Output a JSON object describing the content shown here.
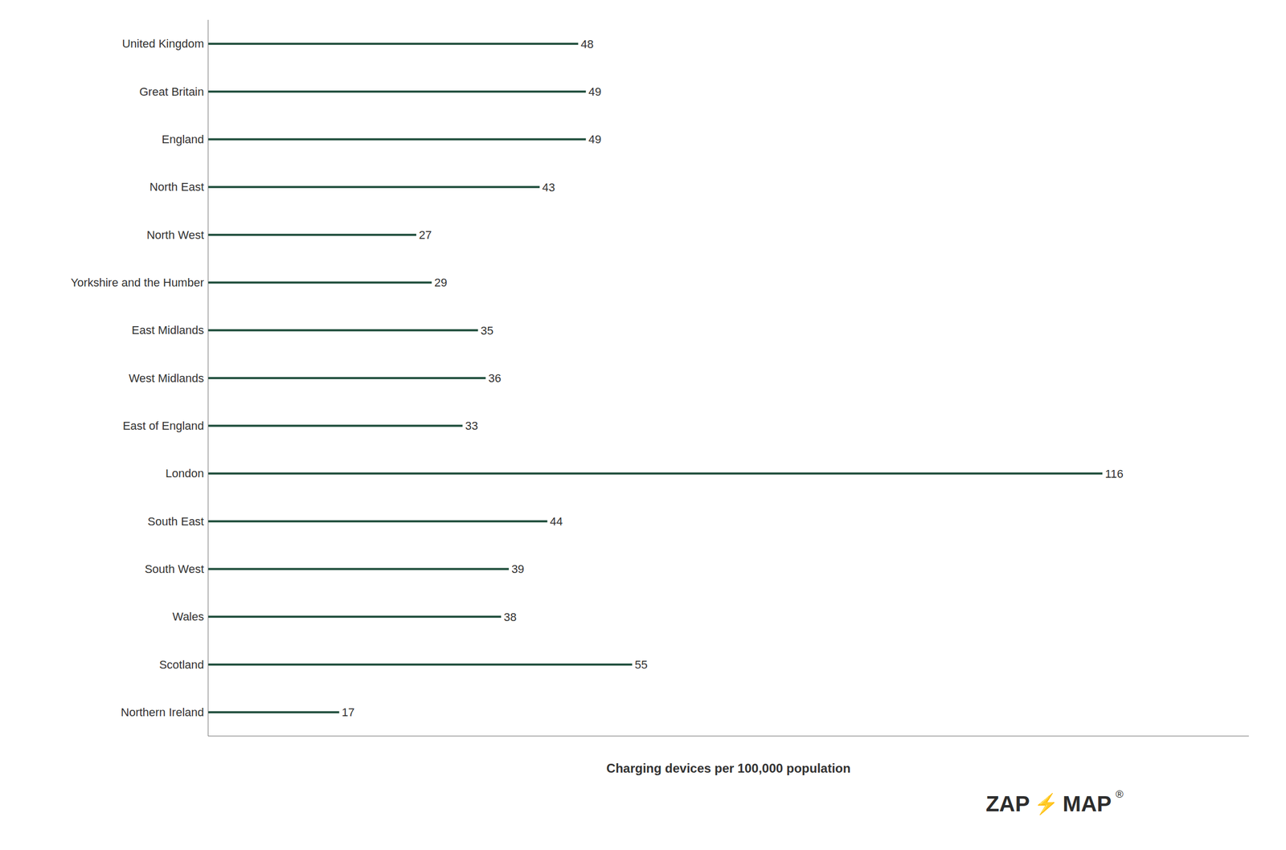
{
  "chart_data": {
    "type": "bar",
    "orientation": "horizontal",
    "categories": [
      "United Kingdom",
      "Great Britain",
      "England",
      "North East",
      "North West",
      "Yorkshire and the Humber",
      "East Midlands",
      "West Midlands",
      "East of England",
      "London",
      "South East",
      "South West",
      "Wales",
      "Scotland",
      "Northern Ireland"
    ],
    "values": [
      48,
      49,
      49,
      43,
      27,
      29,
      35,
      36,
      33,
      116,
      44,
      39,
      38,
      55,
      17
    ],
    "color": "#1e4d3b",
    "xlabel": "Charging devices per 100,000 population",
    "xlim": [
      0,
      135
    ],
    "grid": false,
    "data_labels": true,
    "tick_labels": "y",
    "annotations": [
      {
        "text": "ZAP",
        "color": "#2d2d2d"
      },
      {
        "text": "⚡",
        "color": "#e87722"
      },
      {
        "text": "MAP",
        "color": "#2d2d2d"
      },
      {
        "text": "®",
        "color": "#2d2d2d"
      }
    ]
  }
}
